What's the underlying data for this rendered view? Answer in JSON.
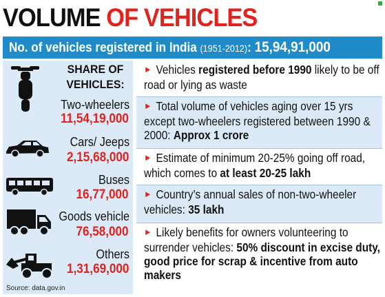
{
  "title": {
    "word1": "VOLUME",
    "word2": "OF VEHICLES"
  },
  "banner": {
    "lead": "No. of vehicles registered in India",
    "period": "(1951-2012)",
    "colon": ":",
    "total": "15,94,91,000"
  },
  "share": {
    "heading_line1": "SHARE OF",
    "heading_line2": "VEHICLES:",
    "categories": [
      {
        "label": "Two-wheelers",
        "value": "11,54,19,000",
        "icon": "motorcycle-icon"
      },
      {
        "label": "Cars/ Jeeps",
        "value": "2,15,68,000",
        "icon": "car-icon"
      },
      {
        "label": "Buses",
        "value": "16,77,000",
        "icon": "bus-icon"
      },
      {
        "label": "Goods vehicle",
        "value": "76,58,000",
        "icon": "truck-icon"
      },
      {
        "label": "Others",
        "value": "1,31,69,000",
        "icon": "loader-icon"
      }
    ],
    "source": "Source: data.gov.in"
  },
  "points": [
    {
      "pre": "Vehicles ",
      "bold": "registered before 1990",
      "post": " likely to be off road or lying as waste"
    },
    {
      "pre": "Total volume of vehicles aging over 15 yrs except two-wheelers registered between 1990 & 2000: ",
      "bold": "Approx 1 crore",
      "post": ""
    },
    {
      "pre": "Estimate of minimum 20-25% going off road, which comes to ",
      "bold": "at least 20-25 lakh",
      "post": ""
    },
    {
      "pre": "Country’s annual sales of non-two-wheeler vehicles: ",
      "bold": "35 lakh",
      "post": ""
    },
    {
      "pre": "Likely benefits for owners volunteering to surrender vehicles: ",
      "bold": "50% discount in excise duty, good price for scrap & incentive from auto makers",
      "post": ""
    }
  ],
  "colors": {
    "accent_red": "#e0231f",
    "banner_blue": "#1f8bc9",
    "panel_blue": "#dbeaf6"
  }
}
